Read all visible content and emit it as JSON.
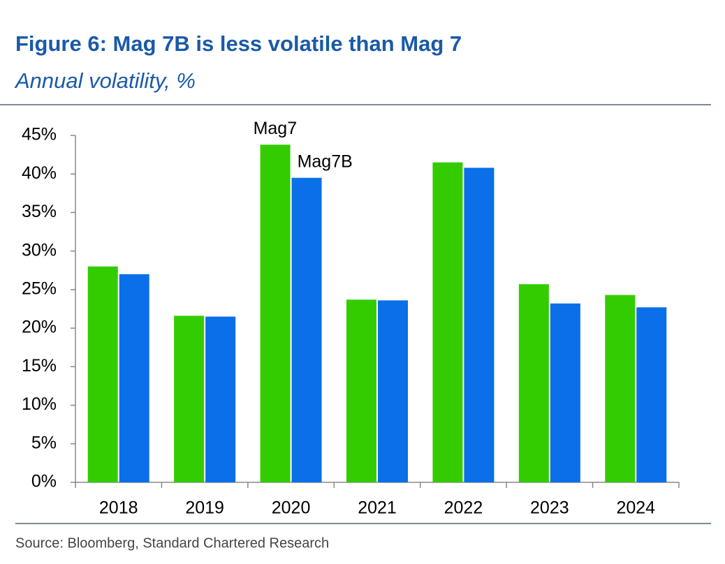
{
  "chart_data": {
    "type": "bar",
    "title": "Figure 6: Mag 7B is less volatile than Mag 7",
    "subtitle": "Annual volatility, %",
    "source": "Source: Bloomberg, Standard Chartered Research",
    "categories": [
      "2018",
      "2019",
      "2020",
      "2021",
      "2022",
      "2023",
      "2024"
    ],
    "series": [
      {
        "name": "Mag7",
        "color": "#33cc00",
        "values": [
          28.0,
          21.6,
          43.8,
          23.7,
          41.5,
          25.7,
          24.3
        ]
      },
      {
        "name": "Mag7B",
        "color": "#0a6fe8",
        "values": [
          27.0,
          21.5,
          39.5,
          23.6,
          40.8,
          23.2,
          22.7
        ]
      }
    ],
    "ylim": [
      0,
      45
    ],
    "yticks": [
      {
        "value": 0,
        "label": "0%"
      },
      {
        "value": 5,
        "label": "5%"
      },
      {
        "value": 10,
        "label": "10%"
      },
      {
        "value": 15,
        "label": "15%"
      },
      {
        "value": 20,
        "label": "20%"
      },
      {
        "value": 25,
        "label": "25%"
      },
      {
        "value": 30,
        "label": "30%"
      },
      {
        "value": 35,
        "label": "35%"
      },
      {
        "value": 40,
        "label": "40%"
      },
      {
        "value": 45,
        "label": "45%"
      }
    ],
    "grid": false
  }
}
